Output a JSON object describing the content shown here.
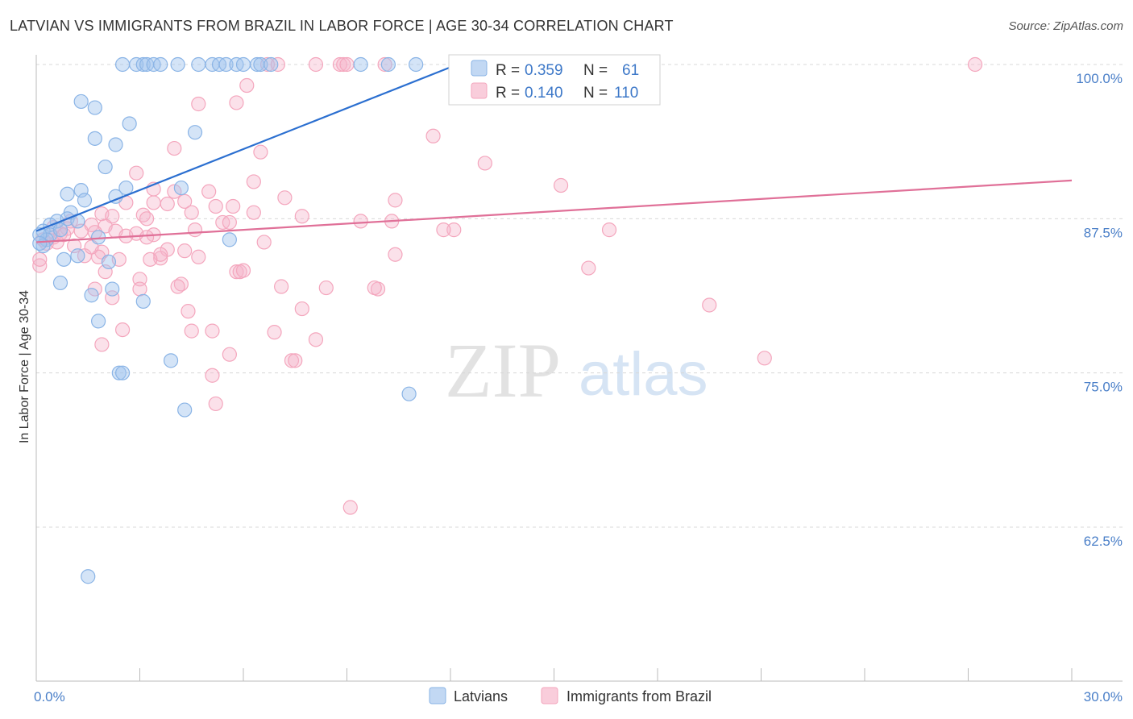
{
  "title": "LATVIAN VS IMMIGRANTS FROM BRAZIL IN LABOR FORCE | AGE 30-34 CORRELATION CHART",
  "source": "Source: ZipAtlas.com",
  "watermark": {
    "zip": "ZIP",
    "atlas": "atlas"
  },
  "chart_data": {
    "type": "scatter",
    "title": "LATVIAN VS IMMIGRANTS FROM BRAZIL IN LABOR FORCE | AGE 30-34 CORRELATION CHART",
    "xlabel": "",
    "ylabel": "In Labor Force | Age 30-34",
    "xlim": [
      0,
      30
    ],
    "ylim": [
      51.5,
      101
    ],
    "x_tick_labels": [
      "0.0%",
      "30.0%"
    ],
    "y_ticks": [
      62.5,
      75.0,
      87.5,
      100.0
    ],
    "y_tick_labels": [
      "62.5%",
      "75.0%",
      "87.5%",
      "100.0%"
    ],
    "grid": "dashed horizontal",
    "legend_position": "top-center",
    "series": [
      {
        "name": "Latvians",
        "color": "#8ab4e6",
        "line_color": "#2b6fd0",
        "R": "0.359",
        "N": "61",
        "trend": {
          "x": [
            0.0,
            12.2
          ],
          "y": [
            86.5,
            100.0
          ]
        },
        "points": [
          [
            2.5,
            100
          ],
          [
            2.9,
            100
          ],
          [
            3.1,
            100
          ],
          [
            3.2,
            100
          ],
          [
            3.4,
            100
          ],
          [
            3.6,
            100
          ],
          [
            4.1,
            100
          ],
          [
            4.7,
            100
          ],
          [
            5.1,
            100
          ],
          [
            5.3,
            100
          ],
          [
            5.5,
            100
          ],
          [
            5.8,
            100
          ],
          [
            6.0,
            100
          ],
          [
            6.4,
            100
          ],
          [
            6.5,
            100
          ],
          [
            6.8,
            100
          ],
          [
            9.4,
            100
          ],
          [
            10.2,
            100
          ],
          [
            11.0,
            100
          ],
          [
            14.5,
            100
          ],
          [
            1.3,
            97
          ],
          [
            1.7,
            96.5
          ],
          [
            2.7,
            95.2
          ],
          [
            4.6,
            94.5
          ],
          [
            1.7,
            94
          ],
          [
            2.3,
            93.5
          ],
          [
            2.0,
            91.7
          ],
          [
            4.2,
            90
          ],
          [
            2.6,
            90
          ],
          [
            1.3,
            89.8
          ],
          [
            0.9,
            89.5
          ],
          [
            2.3,
            89.3
          ],
          [
            1.4,
            89
          ],
          [
            1.0,
            88
          ],
          [
            0.6,
            87.3
          ],
          [
            0.4,
            87
          ],
          [
            0.9,
            87.5
          ],
          [
            1.2,
            87.3
          ],
          [
            0.2,
            86.5
          ],
          [
            0.4,
            86.2
          ],
          [
            0.7,
            86.6
          ],
          [
            0.3,
            85.8
          ],
          [
            0.1,
            86.2
          ],
          [
            0.2,
            85.3
          ],
          [
            1.8,
            86
          ],
          [
            5.6,
            85.8
          ],
          [
            0.8,
            84.2
          ],
          [
            1.2,
            84.5
          ],
          [
            2.1,
            84
          ],
          [
            0.7,
            82.3
          ],
          [
            1.6,
            81.3
          ],
          [
            2.2,
            81.8
          ],
          [
            3.1,
            80.8
          ],
          [
            1.8,
            79.2
          ],
          [
            3.9,
            76
          ],
          [
            2.4,
            75
          ],
          [
            2.5,
            75
          ],
          [
            4.3,
            72
          ],
          [
            10.8,
            73.3
          ],
          [
            1.5,
            58.5
          ],
          [
            0.1,
            85.5
          ]
        ]
      },
      {
        "name": "Immigrants from Brazil",
        "color": "#f4a6bd",
        "line_color": "#e07098",
        "R": "0.140",
        "N": "110",
        "trend": {
          "x": [
            0.0,
            30.0
          ],
          "y": [
            85.6,
            90.6
          ]
        },
        "points": [
          [
            6.7,
            100
          ],
          [
            7.0,
            100
          ],
          [
            8.1,
            100
          ],
          [
            8.8,
            100
          ],
          [
            8.9,
            100
          ],
          [
            9.0,
            100
          ],
          [
            10.1,
            100
          ],
          [
            14.0,
            100
          ],
          [
            27.2,
            100
          ],
          [
            6.1,
            98.3
          ],
          [
            4.7,
            96.8
          ],
          [
            5.8,
            96.9
          ],
          [
            11.5,
            94.2
          ],
          [
            4.0,
            93.2
          ],
          [
            6.5,
            92.9
          ],
          [
            13.0,
            92
          ],
          [
            2.9,
            91.2
          ],
          [
            6.3,
            90.5
          ],
          [
            3.4,
            89.9
          ],
          [
            4.0,
            89.7
          ],
          [
            5.0,
            89.7
          ],
          [
            15.2,
            90.2
          ],
          [
            7.2,
            89.2
          ],
          [
            10.4,
            89
          ],
          [
            2.6,
            88.8
          ],
          [
            3.4,
            88.8
          ],
          [
            4.3,
            88.9
          ],
          [
            5.2,
            88.5
          ],
          [
            5.7,
            88.5
          ],
          [
            3.8,
            88.7
          ],
          [
            1.9,
            87.9
          ],
          [
            3.1,
            87.8
          ],
          [
            2.2,
            87.7
          ],
          [
            4.5,
            88
          ],
          [
            6.3,
            88
          ],
          [
            7.7,
            87.7
          ],
          [
            3.2,
            87.5
          ],
          [
            9.4,
            87.3
          ],
          [
            10.3,
            87.3
          ],
          [
            5.4,
            87.2
          ],
          [
            5.6,
            87.2
          ],
          [
            1.0,
            87.3
          ],
          [
            1.6,
            87
          ],
          [
            2.0,
            86.9
          ],
          [
            0.9,
            86.7
          ],
          [
            0.7,
            86.3
          ],
          [
            2.3,
            86.5
          ],
          [
            4.6,
            86.6
          ],
          [
            3.4,
            86.2
          ],
          [
            2.6,
            86.1
          ],
          [
            3.2,
            86
          ],
          [
            1.3,
            86.5
          ],
          [
            1.7,
            86.4
          ],
          [
            0.5,
            86
          ],
          [
            0.2,
            85.8
          ],
          [
            0.3,
            85.5
          ],
          [
            0.6,
            85.6
          ],
          [
            1.1,
            85.3
          ],
          [
            12.1,
            86.6
          ],
          [
            11.8,
            86.6
          ],
          [
            16.6,
            86.6
          ],
          [
            6.6,
            85.6
          ],
          [
            3.8,
            85
          ],
          [
            4.3,
            84.9
          ],
          [
            1.9,
            84.8
          ],
          [
            10.4,
            84.6
          ],
          [
            1.4,
            84.5
          ],
          [
            1.8,
            84.4
          ],
          [
            2.4,
            84.2
          ],
          [
            3.6,
            84.3
          ],
          [
            4.7,
            84.4
          ],
          [
            0.1,
            83.7
          ],
          [
            5.8,
            83.2
          ],
          [
            5.9,
            83.2
          ],
          [
            6.0,
            83.3
          ],
          [
            16.0,
            83.5
          ],
          [
            3.0,
            82.6
          ],
          [
            4.2,
            82.2
          ],
          [
            4.1,
            82
          ],
          [
            7.1,
            82
          ],
          [
            3.0,
            81.8
          ],
          [
            1.7,
            81.8
          ],
          [
            2.2,
            81.1
          ],
          [
            8.4,
            81.9
          ],
          [
            9.9,
            81.8
          ],
          [
            9.8,
            81.9
          ],
          [
            19.5,
            80.5
          ],
          [
            4.4,
            80
          ],
          [
            7.7,
            80.2
          ],
          [
            2.5,
            78.5
          ],
          [
            4.5,
            78.4
          ],
          [
            5.1,
            78.4
          ],
          [
            6.9,
            78.3
          ],
          [
            8.1,
            77.7
          ],
          [
            1.9,
            77.3
          ],
          [
            5.6,
            76.5
          ],
          [
            7.4,
            76
          ],
          [
            7.5,
            76
          ],
          [
            21.1,
            76.2
          ],
          [
            5.1,
            74.8
          ],
          [
            5.2,
            72.5
          ],
          [
            9.1,
            64.1
          ],
          [
            0.1,
            84.2
          ],
          [
            0.5,
            86.8
          ],
          [
            2.9,
            86.3
          ],
          [
            1.6,
            85.2
          ],
          [
            3.6,
            84.6
          ],
          [
            0.8,
            86.2
          ],
          [
            2.0,
            83.2
          ],
          [
            3.3,
            84.2
          ]
        ]
      }
    ]
  }
}
